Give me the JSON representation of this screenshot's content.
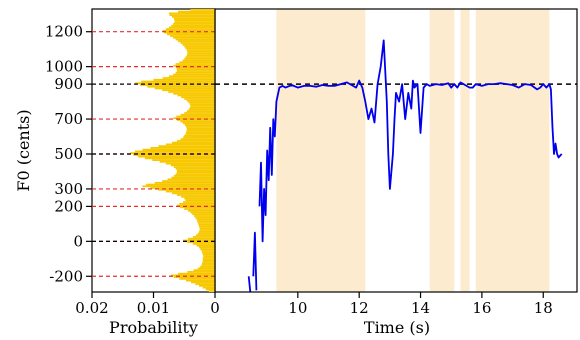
{
  "chart_data": {
    "type": "line",
    "ylabel": "F0 (cents)",
    "ylim": [
      -290,
      1330
    ],
    "yticks": [
      1200,
      1000,
      900,
      700,
      500,
      300,
      200,
      0,
      -200
    ],
    "histogram": {
      "xlabel": "Probability",
      "xlim": [
        0.02,
        0
      ],
      "xticks": [
        0.02,
        0.01,
        0
      ],
      "xtick_labels": [
        "0.02",
        "0.01",
        "0"
      ],
      "bin_width_cents": 10,
      "bins": [
        [
          -290,
          0.001
        ],
        [
          -280,
          0.0015
        ],
        [
          -270,
          0.002
        ],
        [
          -260,
          0.0026
        ],
        [
          -250,
          0.0032
        ],
        [
          -240,
          0.0039
        ],
        [
          -230,
          0.0047
        ],
        [
          -220,
          0.0058
        ],
        [
          -210,
          0.0067
        ],
        [
          -200,
          0.0072
        ],
        [
          -190,
          0.006
        ],
        [
          -180,
          0.0045
        ],
        [
          -170,
          0.0035
        ],
        [
          -160,
          0.0028
        ],
        [
          -150,
          0.0024
        ],
        [
          -140,
          0.0022
        ],
        [
          -130,
          0.0021
        ],
        [
          -120,
          0.002
        ],
        [
          -110,
          0.002
        ],
        [
          -100,
          0.002
        ],
        [
          -90,
          0.0019
        ],
        [
          -80,
          0.002
        ],
        [
          -70,
          0.0021
        ],
        [
          -60,
          0.0022
        ],
        [
          -50,
          0.0024
        ],
        [
          -40,
          0.0026
        ],
        [
          -30,
          0.003
        ],
        [
          -20,
          0.0036
        ],
        [
          -10,
          0.0045
        ],
        [
          0,
          0.0052
        ],
        [
          10,
          0.0044
        ],
        [
          20,
          0.0036
        ],
        [
          30,
          0.0031
        ],
        [
          40,
          0.0028
        ],
        [
          50,
          0.0026
        ],
        [
          60,
          0.0025
        ],
        [
          70,
          0.0025
        ],
        [
          80,
          0.0026
        ],
        [
          90,
          0.0027
        ],
        [
          100,
          0.0028
        ],
        [
          110,
          0.0029
        ],
        [
          120,
          0.003
        ],
        [
          130,
          0.0032
        ],
        [
          140,
          0.0034
        ],
        [
          150,
          0.0037
        ],
        [
          160,
          0.004
        ],
        [
          170,
          0.0044
        ],
        [
          180,
          0.005
        ],
        [
          190,
          0.0057
        ],
        [
          200,
          0.0062
        ],
        [
          210,
          0.0058
        ],
        [
          220,
          0.0052
        ],
        [
          230,
          0.0048
        ],
        [
          240,
          0.005
        ],
        [
          250,
          0.0055
        ],
        [
          260,
          0.0062
        ],
        [
          270,
          0.007
        ],
        [
          280,
          0.008
        ],
        [
          290,
          0.0092
        ],
        [
          300,
          0.0105
        ],
        [
          310,
          0.0118
        ],
        [
          320,
          0.0112
        ],
        [
          330,
          0.0098
        ],
        [
          340,
          0.0086
        ],
        [
          350,
          0.0077
        ],
        [
          360,
          0.0071
        ],
        [
          370,
          0.0067
        ],
        [
          380,
          0.0064
        ],
        [
          390,
          0.0062
        ],
        [
          400,
          0.0062
        ],
        [
          410,
          0.0064
        ],
        [
          420,
          0.0067
        ],
        [
          430,
          0.0072
        ],
        [
          440,
          0.008
        ],
        [
          450,
          0.009
        ],
        [
          460,
          0.0102
        ],
        [
          470,
          0.0114
        ],
        [
          480,
          0.0125
        ],
        [
          490,
          0.0133
        ],
        [
          500,
          0.0138
        ],
        [
          510,
          0.013
        ],
        [
          520,
          0.0118
        ],
        [
          530,
          0.0105
        ],
        [
          540,
          0.0092
        ],
        [
          550,
          0.008
        ],
        [
          560,
          0.007
        ],
        [
          570,
          0.0062
        ],
        [
          580,
          0.0056
        ],
        [
          590,
          0.0052
        ],
        [
          600,
          0.005
        ],
        [
          610,
          0.0048
        ],
        [
          620,
          0.0047
        ],
        [
          630,
          0.0046
        ],
        [
          640,
          0.0046
        ],
        [
          650,
          0.0047
        ],
        [
          660,
          0.0049
        ],
        [
          670,
          0.0052
        ],
        [
          680,
          0.0056
        ],
        [
          690,
          0.0062
        ],
        [
          700,
          0.0068
        ],
        [
          710,
          0.0063
        ],
        [
          720,
          0.0056
        ],
        [
          730,
          0.005
        ],
        [
          740,
          0.0046
        ],
        [
          750,
          0.0043
        ],
        [
          760,
          0.0041
        ],
        [
          770,
          0.004
        ],
        [
          780,
          0.0041
        ],
        [
          790,
          0.0043
        ],
        [
          800,
          0.0046
        ],
        [
          810,
          0.005
        ],
        [
          820,
          0.0055
        ],
        [
          830,
          0.0061
        ],
        [
          840,
          0.0068
        ],
        [
          850,
          0.0076
        ],
        [
          860,
          0.0086
        ],
        [
          870,
          0.0098
        ],
        [
          880,
          0.011
        ],
        [
          890,
          0.0122
        ],
        [
          900,
          0.013
        ],
        [
          910,
          0.012
        ],
        [
          920,
          0.01
        ],
        [
          930,
          0.0085
        ],
        [
          940,
          0.0075
        ],
        [
          950,
          0.0068
        ],
        [
          960,
          0.0064
        ],
        [
          970,
          0.0062
        ],
        [
          980,
          0.0062
        ],
        [
          990,
          0.0064
        ],
        [
          1000,
          0.0068
        ],
        [
          1010,
          0.0064
        ],
        [
          1020,
          0.0058
        ],
        [
          1030,
          0.0053
        ],
        [
          1040,
          0.005
        ],
        [
          1050,
          0.0048
        ],
        [
          1060,
          0.0046
        ],
        [
          1070,
          0.0045
        ],
        [
          1080,
          0.0045
        ],
        [
          1090,
          0.0046
        ],
        [
          1100,
          0.0048
        ],
        [
          1110,
          0.005
        ],
        [
          1120,
          0.0053
        ],
        [
          1130,
          0.0056
        ],
        [
          1140,
          0.006
        ],
        [
          1150,
          0.0064
        ],
        [
          1160,
          0.0068
        ],
        [
          1170,
          0.0073
        ],
        [
          1180,
          0.0078
        ],
        [
          1190,
          0.0083
        ],
        [
          1200,
          0.0085
        ],
        [
          1210,
          0.008
        ],
        [
          1220,
          0.0075
        ],
        [
          1230,
          0.0071
        ],
        [
          1240,
          0.0068
        ],
        [
          1250,
          0.0066
        ],
        [
          1260,
          0.0066
        ],
        [
          1270,
          0.0067
        ],
        [
          1280,
          0.007
        ],
        [
          1290,
          0.0074
        ],
        [
          1300,
          0.0075
        ],
        [
          1310,
          0.006
        ],
        [
          1320,
          0.004
        ]
      ]
    },
    "pitch_reference_lines": {
      "red_dashed_cents": [
        1200,
        1000,
        700,
        500,
        300,
        200,
        0,
        -200
      ],
      "black_dashed_cents": [
        900,
        500,
        0
      ]
    },
    "trace": {
      "xlabel": "Time (s)",
      "xlim": [
        7.3,
        19.1
      ],
      "xticks": [
        10,
        12,
        14,
        16,
        18
      ],
      "xtick_labels": [
        "10",
        "12",
        "14",
        "16",
        "18"
      ],
      "tonic_line_cents": 900,
      "shaded_intervals": [
        [
          9.3,
          12.2
        ],
        [
          14.3,
          15.1
        ],
        [
          15.3,
          15.6
        ],
        [
          15.8,
          18.2
        ]
      ],
      "shade_color": "#fdebd0",
      "line_color": "#0000ee",
      "f0": {
        "x": [
          8.4,
          8.45,
          8.5,
          8.55,
          8.6,
          8.65,
          8.7,
          8.75,
          8.8,
          8.85,
          8.9,
          8.95,
          9.0,
          9.05,
          9.1,
          9.15,
          9.2,
          9.25,
          9.3,
          9.4,
          9.5,
          9.6,
          9.8,
          10.0,
          10.2,
          10.4,
          10.6,
          10.8,
          11.0,
          11.2,
          11.4,
          11.6,
          11.8,
          11.9,
          12.0,
          12.1,
          12.2,
          12.3,
          12.4,
          12.5,
          12.6,
          12.7,
          12.8,
          12.9,
          12.95,
          13.0,
          13.05,
          13.1,
          13.15,
          13.2,
          13.3,
          13.4,
          13.5,
          13.6,
          13.7,
          13.75,
          13.8,
          13.9,
          14.0,
          14.1,
          14.2,
          14.3,
          14.5,
          14.7,
          14.9,
          15.0,
          15.1,
          15.2,
          15.3,
          15.4,
          15.5,
          15.6,
          15.7,
          15.8,
          16.0,
          16.2,
          16.4,
          16.6,
          16.8,
          17.0,
          17.2,
          17.4,
          17.6,
          17.8,
          17.9,
          18.0,
          18.1,
          18.2,
          18.25,
          18.3,
          18.35,
          18.4,
          18.45,
          18.5,
          18.55,
          18.6
        ],
        "y": [
          -200,
          -290,
          "NaN",
          -200,
          50,
          -280,
          "NaN",
          200,
          450,
          0,
          300,
          150,
          520,
          350,
          650,
          380,
          700,
          600,
          800,
          880,
          890,
          880,
          895,
          880,
          890,
          890,
          885,
          895,
          890,
          890,
          900,
          910,
          890,
          880,
          920,
          880,
          800,
          700,
          760,
          680,
          900,
          1000,
          1150,
          800,
          500,
          300,
          400,
          500,
          700,
          850,
          800,
          900,
          700,
          850,
          760,
          920,
          880,
          900,
          620,
          880,
          900,
          890,
          900,
          895,
          905,
          880,
          900,
          880,
          910,
          900,
          890,
          880,
          880,
          900,
          890,
          900,
          900,
          905,
          900,
          895,
          880,
          900,
          895,
          870,
          880,
          900,
          880,
          900,
          870,
          650,
          500,
          560,
          500,
          480,
          490,
          500
        ]
      }
    }
  }
}
